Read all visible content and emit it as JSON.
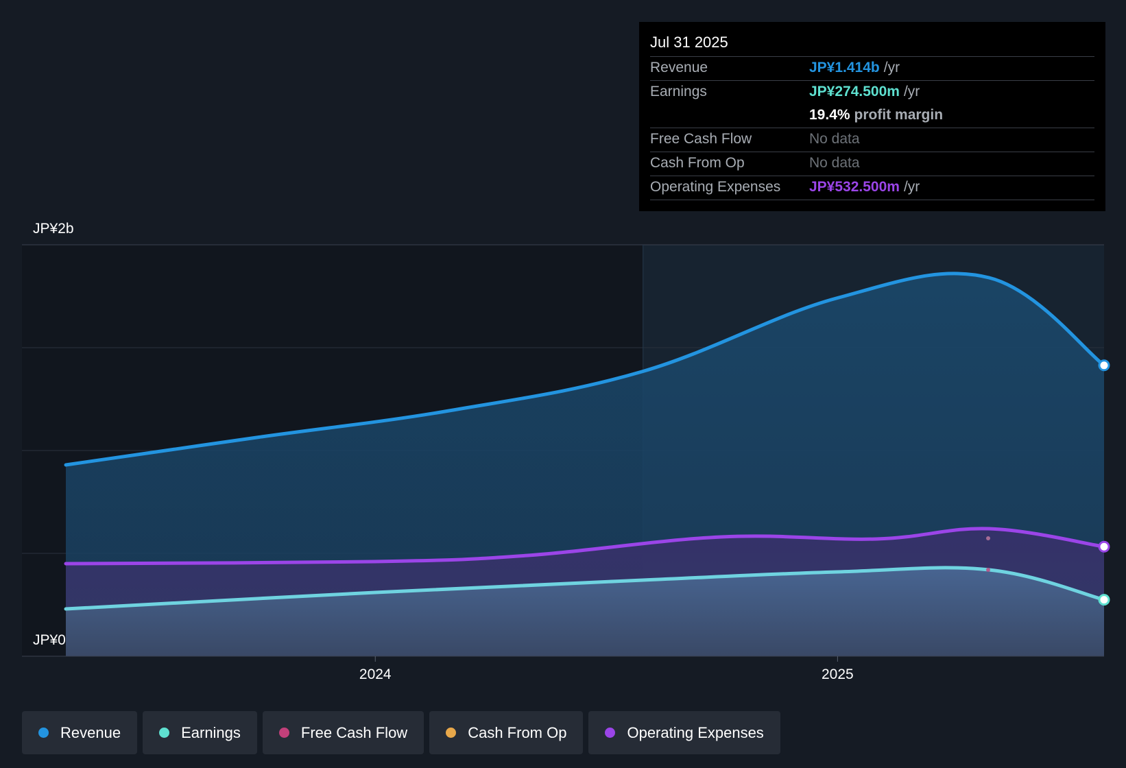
{
  "colors": {
    "revenue": "#2394e0",
    "earnings": "#6fd3e0",
    "free_cash_flow": "#c2407a",
    "cash_from_op": "#e8a84a",
    "operating_expenses": "#9b45e8",
    "earnings_dot": "#5ee0d0"
  },
  "tooltip": {
    "date": "Jul 31 2025",
    "rows": [
      {
        "label": "Revenue",
        "value": "JP¥1.414b",
        "unit": "/yr"
      },
      {
        "label": "Earnings",
        "value": "JP¥274.500m",
        "unit": "/yr"
      },
      {
        "label": "",
        "value": "19.4%",
        "unit": "profit margin"
      },
      {
        "label": "Free Cash Flow",
        "value": "No data",
        "unit": ""
      },
      {
        "label": "Cash From Op",
        "value": "No data",
        "unit": ""
      },
      {
        "label": "Operating Expenses",
        "value": "JP¥532.500m",
        "unit": "/yr"
      }
    ]
  },
  "legend": [
    {
      "label": "Revenue"
    },
    {
      "label": "Earnings"
    },
    {
      "label": "Free Cash Flow"
    },
    {
      "label": "Cash From Op"
    },
    {
      "label": "Operating Expenses"
    }
  ],
  "chart_data": {
    "type": "area",
    "y_unit": "JP¥",
    "y_max_label": "JP¥2b",
    "y_min_label": "JP¥0",
    "ylim": [
      0,
      2000
    ],
    "xlim": [
      "2023-05-01",
      "2025-07-31"
    ],
    "x_ticks": [
      {
        "date": "2024-01-01",
        "label": "2024"
      },
      {
        "date": "2025-01-01",
        "label": "2025"
      }
    ],
    "divider_date": "2024-07-31",
    "grid": true,
    "series": [
      {
        "name": "Revenue",
        "key": "revenue",
        "points": [
          [
            "2023-05-01",
            930
          ],
          [
            "2023-10-01",
            1065
          ],
          [
            "2024-03-01",
            1195
          ],
          [
            "2024-07-31",
            1385
          ],
          [
            "2024-12-31",
            1740
          ],
          [
            "2025-05-01",
            1840
          ],
          [
            "2025-07-31",
            1414
          ]
        ]
      },
      {
        "name": "Operating Expenses",
        "key": "operating_expenses",
        "points": [
          [
            "2023-05-01",
            450
          ],
          [
            "2023-12-31",
            460
          ],
          [
            "2024-05-01",
            490
          ],
          [
            "2024-10-01",
            580
          ],
          [
            "2025-02-01",
            570
          ],
          [
            "2025-05-01",
            620
          ],
          [
            "2025-07-31",
            532.5
          ]
        ]
      },
      {
        "name": "Earnings",
        "key": "earnings",
        "points": [
          [
            "2023-05-01",
            230
          ],
          [
            "2024-01-01",
            310
          ],
          [
            "2024-07-31",
            370
          ],
          [
            "2025-01-01",
            410
          ],
          [
            "2025-05-01",
            420
          ],
          [
            "2025-07-31",
            274.5
          ]
        ]
      }
    ]
  }
}
